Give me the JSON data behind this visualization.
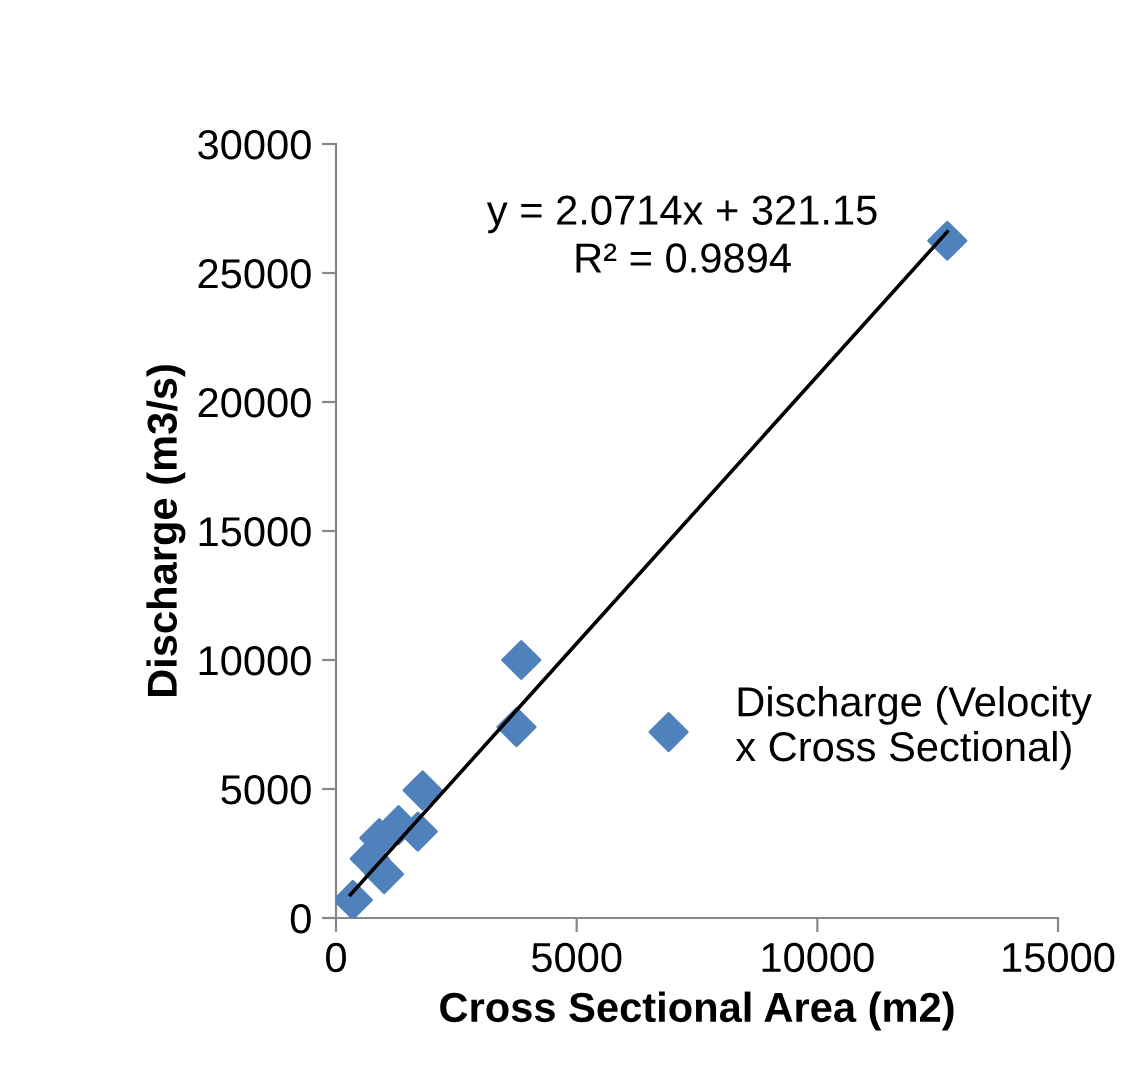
{
  "chart_data": {
    "type": "scatter",
    "xlabel": "Cross Sectional Area (m2)",
    "ylabel": "Discharge (m3/s)",
    "xlim": [
      0,
      15000
    ],
    "xticks": [
      0,
      5000,
      10000,
      15000
    ],
    "ylim": [
      0,
      30000
    ],
    "yticks": [
      0,
      5000,
      10000,
      15000,
      20000,
      25000,
      30000
    ],
    "grid": false,
    "legend": "right",
    "marker": "diamond",
    "annotations": [
      "y = 2.0714x + 321.15\nR² = 0.9894"
    ],
    "series": [
      {
        "name": "Discharge (Velocity\nx Cross Sectional)",
        "color": "#4f81bd",
        "x": [
          12700,
          3850,
          3750,
          1800,
          1700,
          1300,
          900,
          700,
          1000,
          350
        ],
        "values": [
          26250,
          10000,
          7400,
          4950,
          3350,
          3600,
          3100,
          2300,
          1700,
          700
        ]
      },
      {
        "type": "line",
        "color": "#000000",
        "marker": "none",
        "line_style": "solid",
        "x": [
          300,
          12700
        ],
        "values": [
          900,
          26600
        ]
      }
    ]
  }
}
